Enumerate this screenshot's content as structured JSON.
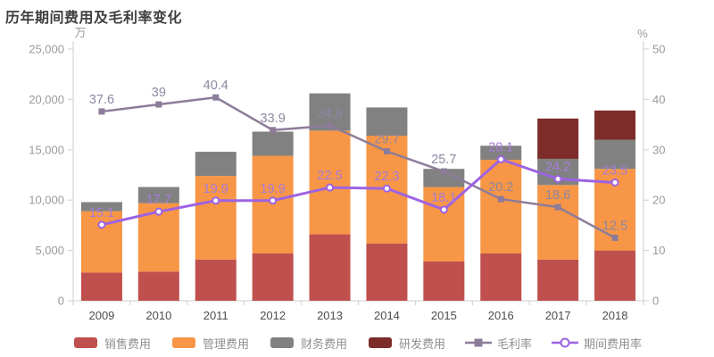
{
  "title": "历年期间费用及毛利率变化",
  "chart_data": {
    "type": "bar",
    "stacked": true,
    "grid": false,
    "legend_position": "bottom",
    "categories": [
      "2009",
      "2010",
      "2011",
      "2012",
      "2013",
      "2014",
      "2015",
      "2016",
      "2017",
      "2018"
    ],
    "bar_series": [
      {
        "name": "销售费用",
        "key": "sales-expense",
        "color": "#c0504d",
        "values": [
          2800,
          2900,
          4100,
          4700,
          6600,
          5700,
          3900,
          4700,
          4100,
          5000
        ]
      },
      {
        "name": "管理费用",
        "key": "admin-expense",
        "color": "#f79646",
        "values": [
          6100,
          6800,
          8300,
          9700,
          10300,
          10700,
          7400,
          9300,
          7400,
          8100
        ]
      },
      {
        "name": "财务费用",
        "key": "finance-expense",
        "color": "#818181",
        "values": [
          900,
          1600,
          2400,
          2400,
          3700,
          2800,
          1800,
          1400,
          2600,
          2900
        ]
      },
      {
        "name": "研发费用",
        "key": "rd-expense",
        "color": "#7d2c29",
        "values": [
          0,
          0,
          0,
          0,
          0,
          0,
          0,
          0,
          4000,
          2900
        ]
      }
    ],
    "line_series": [
      {
        "name": "毛利率",
        "key": "gross-margin",
        "axis": "right",
        "color": "#8d7c99",
        "label_color": "#8e86a2",
        "marker": "square",
        "values": [
          37.6,
          39,
          40.4,
          33.9,
          34.8,
          29.7,
          25.7,
          20.2,
          18.6,
          12.5
        ]
      },
      {
        "name": "期间费用率",
        "key": "expense-ratio",
        "axis": "right",
        "color": "#9d63e3",
        "label_color": "#a77cdb",
        "marker": "circle",
        "values": [
          15.1,
          17.7,
          19.9,
          19.9,
          22.5,
          22.3,
          18.1,
          28.1,
          24.2,
          23.5
        ]
      }
    ],
    "left_axis": {
      "unit": "万",
      "min": 0,
      "max": 25000,
      "ticks": [
        0,
        5000,
        10000,
        15000,
        20000,
        25000
      ],
      "tick_labels": [
        "0",
        "5,000",
        "10,000",
        "15,000",
        "20,000",
        "25,000"
      ]
    },
    "right_axis": {
      "unit": "%",
      "min": 0,
      "max": 50,
      "ticks": [
        0,
        10,
        20,
        30,
        40,
        50
      ],
      "tick_labels": [
        "0",
        "10",
        "20",
        "30",
        "40",
        "50"
      ]
    }
  },
  "legend": [
    {
      "key": "sales-expense",
      "label": "销售费用",
      "swatch": "bar",
      "color": "#c0504d"
    },
    {
      "key": "admin-expense",
      "label": "管理费用",
      "swatch": "bar",
      "color": "#f79646"
    },
    {
      "key": "finance-expense",
      "label": "财务费用",
      "swatch": "bar",
      "color": "#818181"
    },
    {
      "key": "rd-expense",
      "label": "研发费用",
      "swatch": "bar",
      "color": "#7d2c29"
    },
    {
      "key": "gross-margin",
      "label": "毛利率",
      "swatch": "line-square",
      "color": "#8d7c99"
    },
    {
      "key": "expense-ratio",
      "label": "期间费用率",
      "swatch": "line-circle",
      "color": "#9d63e3"
    }
  ],
  "colors": {
    "axis_line": "#cfcfcf",
    "tick_text": "#9a9a9a",
    "category_text": "#4d4d4d",
    "title_text": "#3f3f3f",
    "legend_text": "#8f8f8f"
  }
}
